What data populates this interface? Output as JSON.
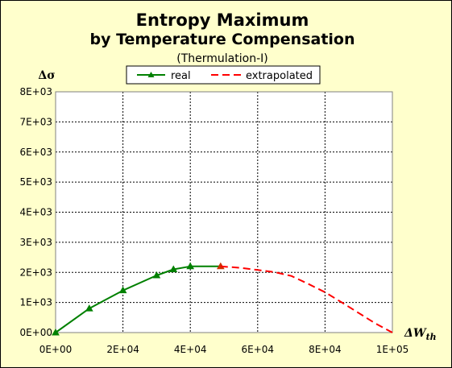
{
  "chart_data": {
    "type": "line",
    "title": "Entropy Maximum",
    "title_line2": "by Temperature Compensation",
    "subtitle": "(Thermulation-I)",
    "ylabel": "Δσ",
    "xlabel_main": "ΔW",
    "xlabel_sub": "th",
    "xlim": [
      0,
      100000
    ],
    "ylim": [
      0,
      8000
    ],
    "x_ticks": [
      0,
      20000,
      40000,
      60000,
      80000,
      100000
    ],
    "x_tick_labels": [
      "0E+00",
      "2E+04",
      "4E+04",
      "6E+04",
      "8E+04",
      "1E+05"
    ],
    "y_ticks": [
      0,
      1000,
      2000,
      3000,
      4000,
      5000,
      6000,
      7000,
      8000
    ],
    "y_tick_labels": [
      "0E+00",
      "1E+03",
      "2E+03",
      "3E+03",
      "4E+03",
      "5E+03",
      "6E+03",
      "7E+03",
      "8E+03"
    ],
    "grid": true,
    "legend_position": "top",
    "series": [
      {
        "name": "real",
        "color": "#008000",
        "marker": "triangle",
        "x": [
          0,
          10000,
          20000,
          30000,
          35000,
          40000,
          49000
        ],
        "y": [
          0,
          800,
          1400,
          1900,
          2100,
          2200,
          2200
        ]
      },
      {
        "name": "extrapolated",
        "color": "#ff0000",
        "style": "dashed",
        "x": [
          49000,
          55000,
          60000,
          65000,
          70000,
          75000,
          80000,
          85000,
          90000,
          95000,
          100000
        ],
        "y": [
          2200,
          2150,
          2080,
          2010,
          1880,
          1620,
          1340,
          1000,
          650,
          300,
          0
        ]
      }
    ]
  }
}
